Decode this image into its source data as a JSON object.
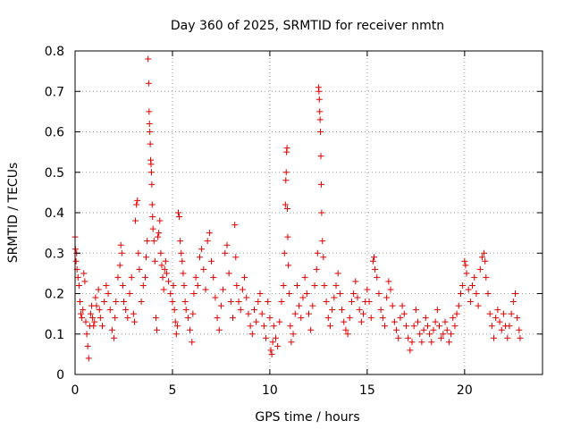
{
  "chart_data": {
    "type": "scatter",
    "title": "Day 360 of 2025, SRMTID for receiver nmtn",
    "xlabel": "GPS time / hours",
    "ylabel": "SRMTID / TECUs",
    "xlim": [
      0,
      24
    ],
    "ylim": [
      0,
      0.8
    ],
    "xticks": [
      0,
      5,
      10,
      15,
      20
    ],
    "yticks": [
      0,
      0.1,
      0.2,
      0.3,
      0.4,
      0.5,
      0.6,
      0.7,
      0.8
    ],
    "xtick_labels": [
      "0",
      "5",
      "10",
      "15",
      "20"
    ],
    "ytick_labels": [
      "0",
      "0.1",
      "0.2",
      "0.3",
      "0.4",
      "0.5",
      "0.6",
      "0.7",
      "0.8"
    ],
    "grid": true,
    "marker": "+",
    "marker_color": "#e00000",
    "series": [
      {
        "name": "SRMTID",
        "points": [
          [
            0.0,
            0.34
          ],
          [
            0.02,
            0.31
          ],
          [
            0.05,
            0.28
          ],
          [
            0.08,
            0.3
          ],
          [
            0.1,
            0.26
          ],
          [
            0.15,
            0.24
          ],
          [
            0.2,
            0.22
          ],
          [
            0.25,
            0.18
          ],
          [
            0.3,
            0.15
          ],
          [
            0.35,
            0.14
          ],
          [
            0.4,
            0.16
          ],
          [
            0.45,
            0.25
          ],
          [
            0.5,
            0.23
          ],
          [
            0.55,
            0.13
          ],
          [
            0.6,
            0.1
          ],
          [
            0.65,
            0.07
          ],
          [
            0.7,
            0.04
          ],
          [
            0.75,
            0.12
          ],
          [
            0.8,
            0.15
          ],
          [
            0.85,
            0.17
          ],
          [
            0.9,
            0.14
          ],
          [
            0.95,
            0.12
          ],
          [
            1.0,
            0.13
          ],
          [
            1.05,
            0.19
          ],
          [
            1.1,
            0.17
          ],
          [
            1.2,
            0.21
          ],
          [
            1.25,
            0.16
          ],
          [
            1.3,
            0.14
          ],
          [
            1.4,
            0.12
          ],
          [
            1.5,
            0.18
          ],
          [
            1.6,
            0.22
          ],
          [
            1.7,
            0.2
          ],
          [
            1.8,
            0.16
          ],
          [
            1.9,
            0.11
          ],
          [
            2.0,
            0.09
          ],
          [
            2.05,
            0.14
          ],
          [
            2.1,
            0.18
          ],
          [
            2.2,
            0.24
          ],
          [
            2.3,
            0.27
          ],
          [
            2.35,
            0.32
          ],
          [
            2.4,
            0.3
          ],
          [
            2.45,
            0.22
          ],
          [
            2.5,
            0.18
          ],
          [
            2.6,
            0.16
          ],
          [
            2.7,
            0.14
          ],
          [
            2.8,
            0.2
          ],
          [
            2.9,
            0.24
          ],
          [
            3.0,
            0.15
          ],
          [
            3.05,
            0.13
          ],
          [
            3.1,
            0.38
          ],
          [
            3.15,
            0.42
          ],
          [
            3.2,
            0.43
          ],
          [
            3.25,
            0.3
          ],
          [
            3.3,
            0.26
          ],
          [
            3.4,
            0.18
          ],
          [
            3.5,
            0.22
          ],
          [
            3.6,
            0.24
          ],
          [
            3.65,
            0.29
          ],
          [
            3.7,
            0.33
          ],
          [
            3.75,
            0.78
          ],
          [
            3.78,
            0.72
          ],
          [
            3.8,
            0.65
          ],
          [
            3.82,
            0.62
          ],
          [
            3.84,
            0.6
          ],
          [
            3.86,
            0.57
          ],
          [
            3.88,
            0.53
          ],
          [
            3.9,
            0.52
          ],
          [
            3.92,
            0.5
          ],
          [
            3.94,
            0.47
          ],
          [
            3.96,
            0.42
          ],
          [
            3.98,
            0.39
          ],
          [
            4.0,
            0.36
          ],
          [
            4.05,
            0.33
          ],
          [
            4.1,
            0.28
          ],
          [
            4.15,
            0.14
          ],
          [
            4.2,
            0.11
          ],
          [
            4.25,
            0.34
          ],
          [
            4.3,
            0.35
          ],
          [
            4.35,
            0.38
          ],
          [
            4.4,
            0.3
          ],
          [
            4.45,
            0.27
          ],
          [
            4.5,
            0.24
          ],
          [
            4.55,
            0.21
          ],
          [
            4.6,
            0.26
          ],
          [
            4.65,
            0.28
          ],
          [
            4.7,
            0.25
          ],
          [
            4.8,
            0.23
          ],
          [
            4.9,
            0.2
          ],
          [
            5.0,
            0.18
          ],
          [
            5.05,
            0.22
          ],
          [
            5.1,
            0.16
          ],
          [
            5.15,
            0.13
          ],
          [
            5.2,
            0.1
          ],
          [
            5.25,
            0.12
          ],
          [
            5.3,
            0.4
          ],
          [
            5.35,
            0.39
          ],
          [
            5.4,
            0.33
          ],
          [
            5.45,
            0.3
          ],
          [
            5.5,
            0.28
          ],
          [
            5.55,
            0.25
          ],
          [
            5.6,
            0.22
          ],
          [
            5.65,
            0.18
          ],
          [
            5.7,
            0.16
          ],
          [
            5.8,
            0.14
          ],
          [
            5.9,
            0.11
          ],
          [
            6.0,
            0.08
          ],
          [
            6.05,
            0.15
          ],
          [
            6.1,
            0.2
          ],
          [
            6.2,
            0.24
          ],
          [
            6.3,
            0.22
          ],
          [
            6.4,
            0.29
          ],
          [
            6.5,
            0.31
          ],
          [
            6.6,
            0.26
          ],
          [
            6.7,
            0.21
          ],
          [
            6.8,
            0.33
          ],
          [
            6.9,
            0.35
          ],
          [
            7.0,
            0.28
          ],
          [
            7.1,
            0.24
          ],
          [
            7.2,
            0.19
          ],
          [
            7.3,
            0.14
          ],
          [
            7.4,
            0.11
          ],
          [
            7.5,
            0.17
          ],
          [
            7.6,
            0.21
          ],
          [
            7.7,
            0.3
          ],
          [
            7.8,
            0.32
          ],
          [
            7.9,
            0.25
          ],
          [
            8.0,
            0.18
          ],
          [
            8.1,
            0.14
          ],
          [
            8.2,
            0.37
          ],
          [
            8.25,
            0.29
          ],
          [
            8.3,
            0.22
          ],
          [
            8.4,
            0.18
          ],
          [
            8.5,
            0.16
          ],
          [
            8.6,
            0.21
          ],
          [
            8.7,
            0.24
          ],
          [
            8.8,
            0.19
          ],
          [
            8.9,
            0.15
          ],
          [
            9.0,
            0.12
          ],
          [
            9.1,
            0.1
          ],
          [
            9.2,
            0.16
          ],
          [
            9.3,
            0.13
          ],
          [
            9.4,
            0.18
          ],
          [
            9.5,
            0.2
          ],
          [
            9.6,
            0.15
          ],
          [
            9.7,
            0.12
          ],
          [
            9.8,
            0.09
          ],
          [
            9.9,
            0.18
          ],
          [
            10.0,
            0.14
          ],
          [
            10.05,
            0.06
          ],
          [
            10.1,
            0.05
          ],
          [
            10.15,
            0.08
          ],
          [
            10.2,
            0.12
          ],
          [
            10.3,
            0.09
          ],
          [
            10.4,
            0.07
          ],
          [
            10.5,
            0.13
          ],
          [
            10.6,
            0.18
          ],
          [
            10.7,
            0.22
          ],
          [
            10.75,
            0.3
          ],
          [
            10.8,
            0.42
          ],
          [
            10.82,
            0.48
          ],
          [
            10.84,
            0.5
          ],
          [
            10.86,
            0.55
          ],
          [
            10.88,
            0.56
          ],
          [
            10.9,
            0.41
          ],
          [
            10.92,
            0.34
          ],
          [
            10.95,
            0.27
          ],
          [
            11.0,
            0.2
          ],
          [
            11.05,
            0.12
          ],
          [
            11.1,
            0.08
          ],
          [
            11.2,
            0.1
          ],
          [
            11.3,
            0.15
          ],
          [
            11.4,
            0.22
          ],
          [
            11.5,
            0.17
          ],
          [
            11.6,
            0.14
          ],
          [
            11.7,
            0.19
          ],
          [
            11.8,
            0.24
          ],
          [
            11.9,
            0.2
          ],
          [
            12.0,
            0.15
          ],
          [
            12.1,
            0.11
          ],
          [
            12.2,
            0.17
          ],
          [
            12.3,
            0.22
          ],
          [
            12.4,
            0.26
          ],
          [
            12.45,
            0.3
          ],
          [
            12.5,
            0.71
          ],
          [
            12.52,
            0.7
          ],
          [
            12.54,
            0.68
          ],
          [
            12.56,
            0.65
          ],
          [
            12.58,
            0.63
          ],
          [
            12.6,
            0.6
          ],
          [
            12.62,
            0.54
          ],
          [
            12.64,
            0.47
          ],
          [
            12.66,
            0.4
          ],
          [
            12.7,
            0.33
          ],
          [
            12.75,
            0.29
          ],
          [
            12.8,
            0.22
          ],
          [
            12.9,
            0.18
          ],
          [
            13.0,
            0.14
          ],
          [
            13.1,
            0.12
          ],
          [
            13.2,
            0.16
          ],
          [
            13.3,
            0.19
          ],
          [
            13.4,
            0.22
          ],
          [
            13.5,
            0.25
          ],
          [
            13.6,
            0.2
          ],
          [
            13.7,
            0.16
          ],
          [
            13.8,
            0.13
          ],
          [
            13.9,
            0.11
          ],
          [
            14.0,
            0.1
          ],
          [
            14.1,
            0.14
          ],
          [
            14.2,
            0.18
          ],
          [
            14.3,
            0.2
          ],
          [
            14.4,
            0.23
          ],
          [
            14.5,
            0.19
          ],
          [
            14.6,
            0.16
          ],
          [
            14.7,
            0.13
          ],
          [
            14.8,
            0.15
          ],
          [
            14.9,
            0.18
          ],
          [
            15.0,
            0.21
          ],
          [
            15.1,
            0.18
          ],
          [
            15.2,
            0.14
          ],
          [
            15.3,
            0.28
          ],
          [
            15.35,
            0.29
          ],
          [
            15.4,
            0.26
          ],
          [
            15.5,
            0.24
          ],
          [
            15.6,
            0.2
          ],
          [
            15.7,
            0.16
          ],
          [
            15.8,
            0.14
          ],
          [
            15.9,
            0.12
          ],
          [
            16.0,
            0.19
          ],
          [
            16.1,
            0.23
          ],
          [
            16.2,
            0.21
          ],
          [
            16.3,
            0.17
          ],
          [
            16.4,
            0.13
          ],
          [
            16.5,
            0.11
          ],
          [
            16.6,
            0.09
          ],
          [
            16.7,
            0.14
          ],
          [
            16.8,
            0.17
          ],
          [
            16.9,
            0.15
          ],
          [
            17.0,
            0.12
          ],
          [
            17.1,
            0.09
          ],
          [
            17.2,
            0.06
          ],
          [
            17.3,
            0.08
          ],
          [
            17.4,
            0.12
          ],
          [
            17.5,
            0.16
          ],
          [
            17.6,
            0.13
          ],
          [
            17.7,
            0.1
          ],
          [
            17.8,
            0.08
          ],
          [
            17.9,
            0.11
          ],
          [
            18.0,
            0.14
          ],
          [
            18.1,
            0.12
          ],
          [
            18.2,
            0.1
          ],
          [
            18.3,
            0.08
          ],
          [
            18.4,
            0.11
          ],
          [
            18.5,
            0.13
          ],
          [
            18.6,
            0.16
          ],
          [
            18.7,
            0.12
          ],
          [
            18.8,
            0.09
          ],
          [
            18.9,
            0.1
          ],
          [
            19.0,
            0.13
          ],
          [
            19.1,
            0.11
          ],
          [
            19.2,
            0.08
          ],
          [
            19.3,
            0.1
          ],
          [
            19.4,
            0.14
          ],
          [
            19.5,
            0.12
          ],
          [
            19.6,
            0.15
          ],
          [
            19.7,
            0.17
          ],
          [
            19.8,
            0.2
          ],
          [
            19.9,
            0.22
          ],
          [
            20.0,
            0.28
          ],
          [
            20.05,
            0.27
          ],
          [
            20.1,
            0.25
          ],
          [
            20.2,
            0.21
          ],
          [
            20.3,
            0.18
          ],
          [
            20.4,
            0.22
          ],
          [
            20.5,
            0.24
          ],
          [
            20.6,
            0.2
          ],
          [
            20.7,
            0.17
          ],
          [
            20.8,
            0.26
          ],
          [
            20.9,
            0.29
          ],
          [
            21.0,
            0.3
          ],
          [
            21.05,
            0.28
          ],
          [
            21.1,
            0.24
          ],
          [
            21.2,
            0.2
          ],
          [
            21.3,
            0.15
          ],
          [
            21.4,
            0.12
          ],
          [
            21.5,
            0.09
          ],
          [
            21.6,
            0.14
          ],
          [
            21.7,
            0.16
          ],
          [
            21.8,
            0.13
          ],
          [
            21.9,
            0.11
          ],
          [
            22.0,
            0.15
          ],
          [
            22.1,
            0.12
          ],
          [
            22.2,
            0.09
          ],
          [
            22.3,
            0.12
          ],
          [
            22.4,
            0.15
          ],
          [
            22.5,
            0.18
          ],
          [
            22.6,
            0.2
          ],
          [
            22.7,
            0.14
          ],
          [
            22.8,
            0.11
          ],
          [
            22.85,
            0.09
          ]
        ]
      }
    ]
  }
}
